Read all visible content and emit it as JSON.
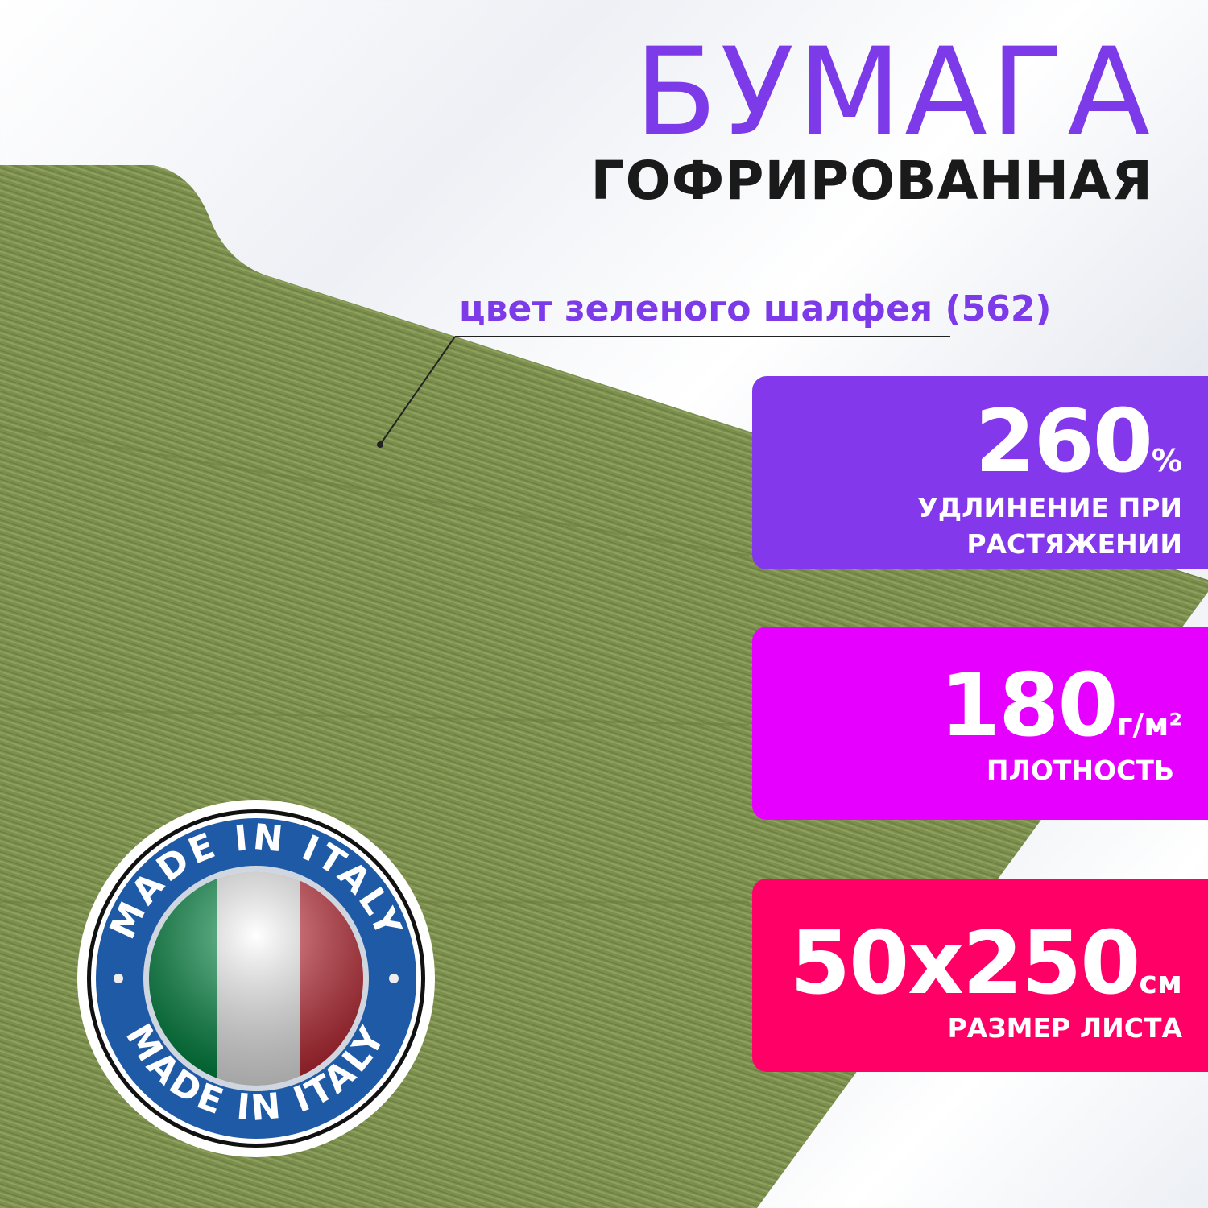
{
  "header": {
    "title": "БУМАГА",
    "subtitle": "ГОФРИРОВАННАЯ"
  },
  "color_label": "цвет зеленого шалфея (562)",
  "features": [
    {
      "value": "260",
      "unit": "%",
      "caption_line1": "УДЛИНЕНИЕ ПРИ",
      "caption_line2": "РАСТЯЖЕНИИ",
      "color": "#8338ec"
    },
    {
      "value": "180",
      "unit": "г/м²",
      "caption_line1": "ПЛОТНОСТЬ",
      "color": "#e600ff"
    },
    {
      "value": "50x250",
      "unit": "см",
      "caption_line1": "РАЗМЕР ЛИСТА",
      "color": "#ff0066"
    }
  ],
  "badge": {
    "text_top": "MADE IN ITALY",
    "text_bottom": "MADE IN ITALY",
    "ring_color": "#1f5aa6",
    "flag_colors": [
      "#009246",
      "#ffffff",
      "#ce2b37"
    ]
  },
  "paper_color": "#7c8f4e"
}
